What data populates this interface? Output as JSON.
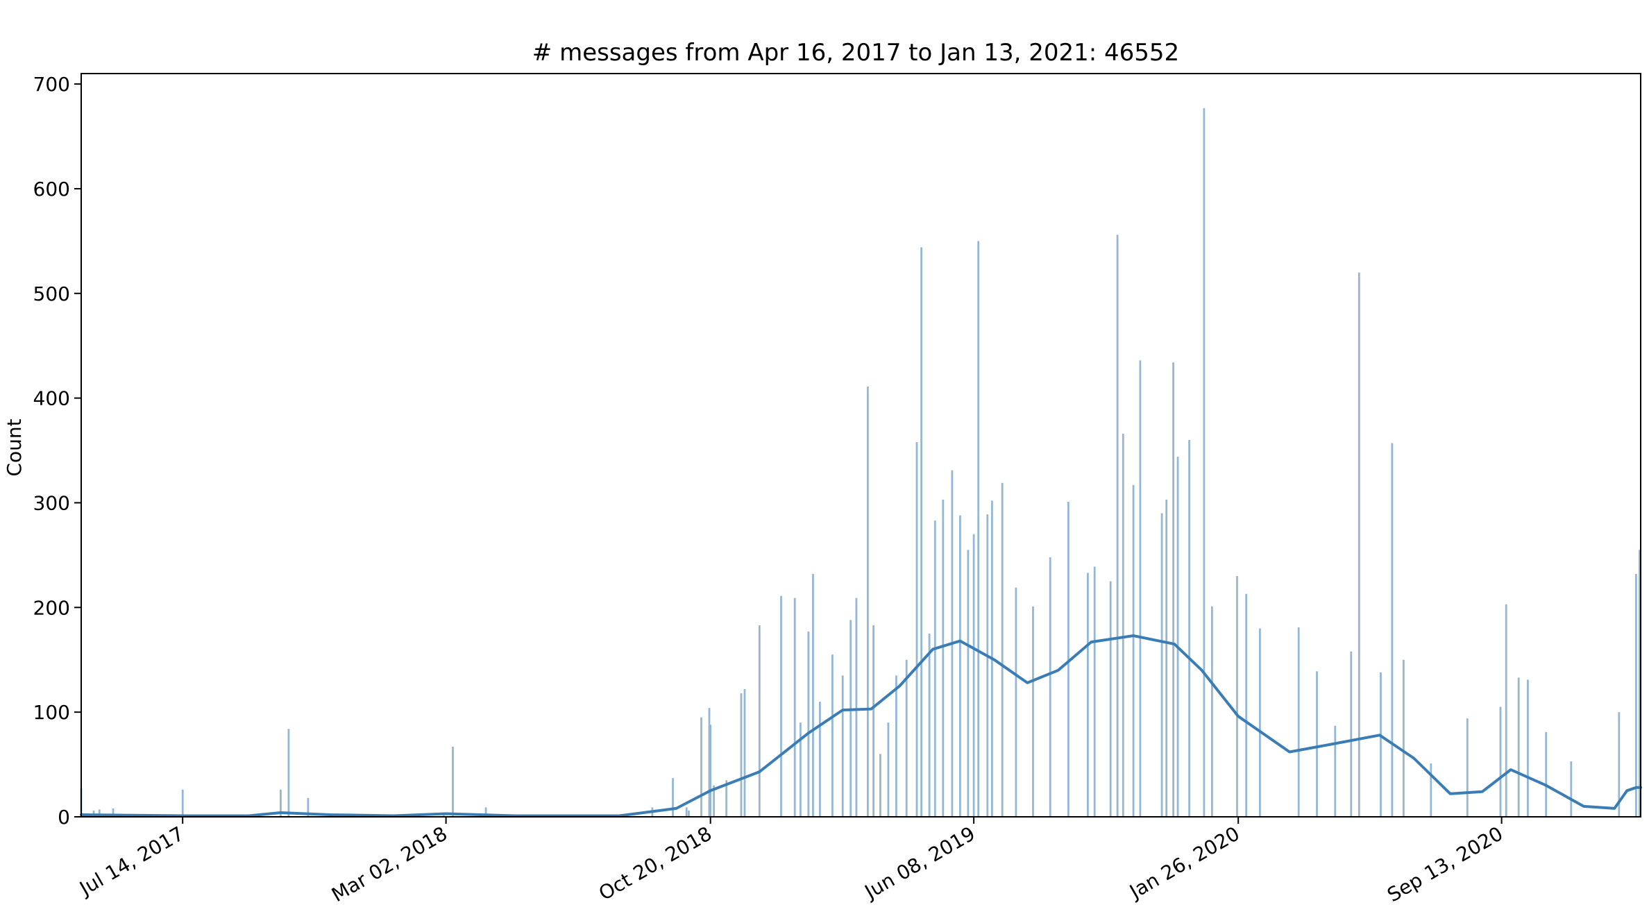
{
  "chart_data": {
    "type": "bar",
    "title": "# messages from Apr 16, 2017 to Jan 13, 2021: 46552",
    "xlabel": "",
    "ylabel": "Count",
    "x_range": [
      "2017-04-16",
      "2021-01-13"
    ],
    "ylim": [
      0,
      710
    ],
    "y_ticks": [
      0,
      100,
      200,
      300,
      400,
      500,
      600,
      700
    ],
    "x_ticks": [
      {
        "date": "2017-07-14",
        "label": "Jul 14, 2017"
      },
      {
        "date": "2018-03-02",
        "label": "Mar 02, 2018"
      },
      {
        "date": "2018-10-20",
        "label": "Oct 20, 2018"
      },
      {
        "date": "2019-06-08",
        "label": "Jun 08, 2019"
      },
      {
        "date": "2020-01-26",
        "label": "Jan 26, 2020"
      },
      {
        "date": "2020-09-13",
        "label": "Sep 13, 2020"
      }
    ],
    "grid": false,
    "bar_color": "#94b8d4",
    "kde_color": "#3a7db5",
    "series": [
      {
        "type": "bar",
        "points": [
          {
            "date": "2017-04-16",
            "count": 27
          },
          {
            "date": "2017-04-27",
            "count": 6
          },
          {
            "date": "2017-05-02",
            "count": 7
          },
          {
            "date": "2017-05-14",
            "count": 8
          },
          {
            "date": "2017-07-14",
            "count": 26
          },
          {
            "date": "2017-10-08",
            "count": 26
          },
          {
            "date": "2017-10-15",
            "count": 84
          },
          {
            "date": "2017-11-01",
            "count": 18
          },
          {
            "date": "2018-02-28",
            "count": 3
          },
          {
            "date": "2018-03-08",
            "count": 67
          },
          {
            "date": "2018-04-06",
            "count": 9
          },
          {
            "date": "2018-08-30",
            "count": 9
          },
          {
            "date": "2018-09-17",
            "count": 37
          },
          {
            "date": "2018-09-29",
            "count": 9
          },
          {
            "date": "2018-10-01",
            "count": 6
          },
          {
            "date": "2018-10-12",
            "count": 95
          },
          {
            "date": "2018-10-19",
            "count": 104
          },
          {
            "date": "2018-10-20",
            "count": 88
          },
          {
            "date": "2018-10-23",
            "count": 30
          },
          {
            "date": "2018-11-03",
            "count": 35
          },
          {
            "date": "2018-11-16",
            "count": 118
          },
          {
            "date": "2018-11-19",
            "count": 122
          },
          {
            "date": "2018-12-02",
            "count": 183
          },
          {
            "date": "2018-12-21",
            "count": 211
          },
          {
            "date": "2019-01-02",
            "count": 209
          },
          {
            "date": "2019-01-07",
            "count": 90
          },
          {
            "date": "2019-01-14",
            "count": 177
          },
          {
            "date": "2019-01-18",
            "count": 232
          },
          {
            "date": "2019-01-24",
            "count": 110
          },
          {
            "date": "2019-02-04",
            "count": 155
          },
          {
            "date": "2019-02-13",
            "count": 135
          },
          {
            "date": "2019-02-20",
            "count": 188
          },
          {
            "date": "2019-02-25",
            "count": 209
          },
          {
            "date": "2019-03-07",
            "count": 411
          },
          {
            "date": "2019-03-12",
            "count": 183
          },
          {
            "date": "2019-03-18",
            "count": 60
          },
          {
            "date": "2019-03-25",
            "count": 90
          },
          {
            "date": "2019-04-01",
            "count": 135
          },
          {
            "date": "2019-04-10",
            "count": 150
          },
          {
            "date": "2019-04-19",
            "count": 358
          },
          {
            "date": "2019-04-23",
            "count": 544
          },
          {
            "date": "2019-04-30",
            "count": 175
          },
          {
            "date": "2019-05-05",
            "count": 283
          },
          {
            "date": "2019-05-12",
            "count": 303
          },
          {
            "date": "2019-05-20",
            "count": 331
          },
          {
            "date": "2019-05-27",
            "count": 288
          },
          {
            "date": "2019-06-03",
            "count": 255
          },
          {
            "date": "2019-06-08",
            "count": 270
          },
          {
            "date": "2019-06-12",
            "count": 550
          },
          {
            "date": "2019-06-20",
            "count": 289
          },
          {
            "date": "2019-06-24",
            "count": 302
          },
          {
            "date": "2019-07-03",
            "count": 319
          },
          {
            "date": "2019-07-15",
            "count": 219
          },
          {
            "date": "2019-07-30",
            "count": 201
          },
          {
            "date": "2019-08-14",
            "count": 248
          },
          {
            "date": "2019-08-30",
            "count": 301
          },
          {
            "date": "2019-09-16",
            "count": 233
          },
          {
            "date": "2019-09-22",
            "count": 239
          },
          {
            "date": "2019-10-06",
            "count": 225
          },
          {
            "date": "2019-10-12",
            "count": 556
          },
          {
            "date": "2019-10-17",
            "count": 366
          },
          {
            "date": "2019-10-26",
            "count": 317
          },
          {
            "date": "2019-11-01",
            "count": 436
          },
          {
            "date": "2019-11-20",
            "count": 290
          },
          {
            "date": "2019-11-24",
            "count": 303
          },
          {
            "date": "2019-11-30",
            "count": 434
          },
          {
            "date": "2019-12-04",
            "count": 344
          },
          {
            "date": "2019-12-14",
            "count": 360
          },
          {
            "date": "2019-12-27",
            "count": 677
          },
          {
            "date": "2020-01-03",
            "count": 201
          },
          {
            "date": "2020-01-25",
            "count": 230
          },
          {
            "date": "2020-02-02",
            "count": 213
          },
          {
            "date": "2020-02-14",
            "count": 180
          },
          {
            "date": "2020-03-19",
            "count": 181
          },
          {
            "date": "2020-04-04",
            "count": 139
          },
          {
            "date": "2020-04-20",
            "count": 87
          },
          {
            "date": "2020-05-04",
            "count": 158
          },
          {
            "date": "2020-05-11",
            "count": 520
          },
          {
            "date": "2020-05-30",
            "count": 138
          },
          {
            "date": "2020-06-09",
            "count": 357
          },
          {
            "date": "2020-06-19",
            "count": 150
          },
          {
            "date": "2020-07-13",
            "count": 51
          },
          {
            "date": "2020-08-14",
            "count": 94
          },
          {
            "date": "2020-09-12",
            "count": 105
          },
          {
            "date": "2020-09-17",
            "count": 203
          },
          {
            "date": "2020-09-28",
            "count": 133
          },
          {
            "date": "2020-10-06",
            "count": 131
          },
          {
            "date": "2020-10-22",
            "count": 81
          },
          {
            "date": "2020-11-13",
            "count": 53
          },
          {
            "date": "2020-12-25",
            "count": 100
          },
          {
            "date": "2021-01-09",
            "count": 232
          },
          {
            "date": "2021-01-12",
            "count": 255
          }
        ]
      },
      {
        "type": "kde",
        "points": [
          {
            "date": "2017-04-16",
            "count": 2
          },
          {
            "date": "2017-07-14",
            "count": 1
          },
          {
            "date": "2017-09-10",
            "count": 1
          },
          {
            "date": "2017-10-08",
            "count": 4
          },
          {
            "date": "2017-11-20",
            "count": 2
          },
          {
            "date": "2018-01-15",
            "count": 1
          },
          {
            "date": "2018-03-02",
            "count": 3
          },
          {
            "date": "2018-05-01",
            "count": 1
          },
          {
            "date": "2018-08-01",
            "count": 1
          },
          {
            "date": "2018-09-20",
            "count": 8
          },
          {
            "date": "2018-10-20",
            "count": 25
          },
          {
            "date": "2018-12-02",
            "count": 43
          },
          {
            "date": "2019-01-14",
            "count": 80
          },
          {
            "date": "2019-02-13",
            "count": 102
          },
          {
            "date": "2019-03-10",
            "count": 103
          },
          {
            "date": "2019-04-04",
            "count": 125
          },
          {
            "date": "2019-05-03",
            "count": 160
          },
          {
            "date": "2019-05-27",
            "count": 168
          },
          {
            "date": "2019-06-26",
            "count": 150
          },
          {
            "date": "2019-07-25",
            "count": 128
          },
          {
            "date": "2019-08-21",
            "count": 140
          },
          {
            "date": "2019-09-19",
            "count": 167
          },
          {
            "date": "2019-10-26",
            "count": 173
          },
          {
            "date": "2019-12-01",
            "count": 165
          },
          {
            "date": "2019-12-25",
            "count": 140
          },
          {
            "date": "2020-01-26",
            "count": 96
          },
          {
            "date": "2020-03-11",
            "count": 62
          },
          {
            "date": "2020-04-20",
            "count": 70
          },
          {
            "date": "2020-05-29",
            "count": 78
          },
          {
            "date": "2020-06-28",
            "count": 56
          },
          {
            "date": "2020-07-30",
            "count": 22
          },
          {
            "date": "2020-08-27",
            "count": 24
          },
          {
            "date": "2020-09-21",
            "count": 45
          },
          {
            "date": "2020-10-22",
            "count": 30
          },
          {
            "date": "2020-11-24",
            "count": 10
          },
          {
            "date": "2020-12-21",
            "count": 8
          },
          {
            "date": "2021-01-01",
            "count": 25
          },
          {
            "date": "2021-01-09",
            "count": 28
          },
          {
            "date": "2021-01-13",
            "count": 28
          }
        ]
      }
    ]
  }
}
